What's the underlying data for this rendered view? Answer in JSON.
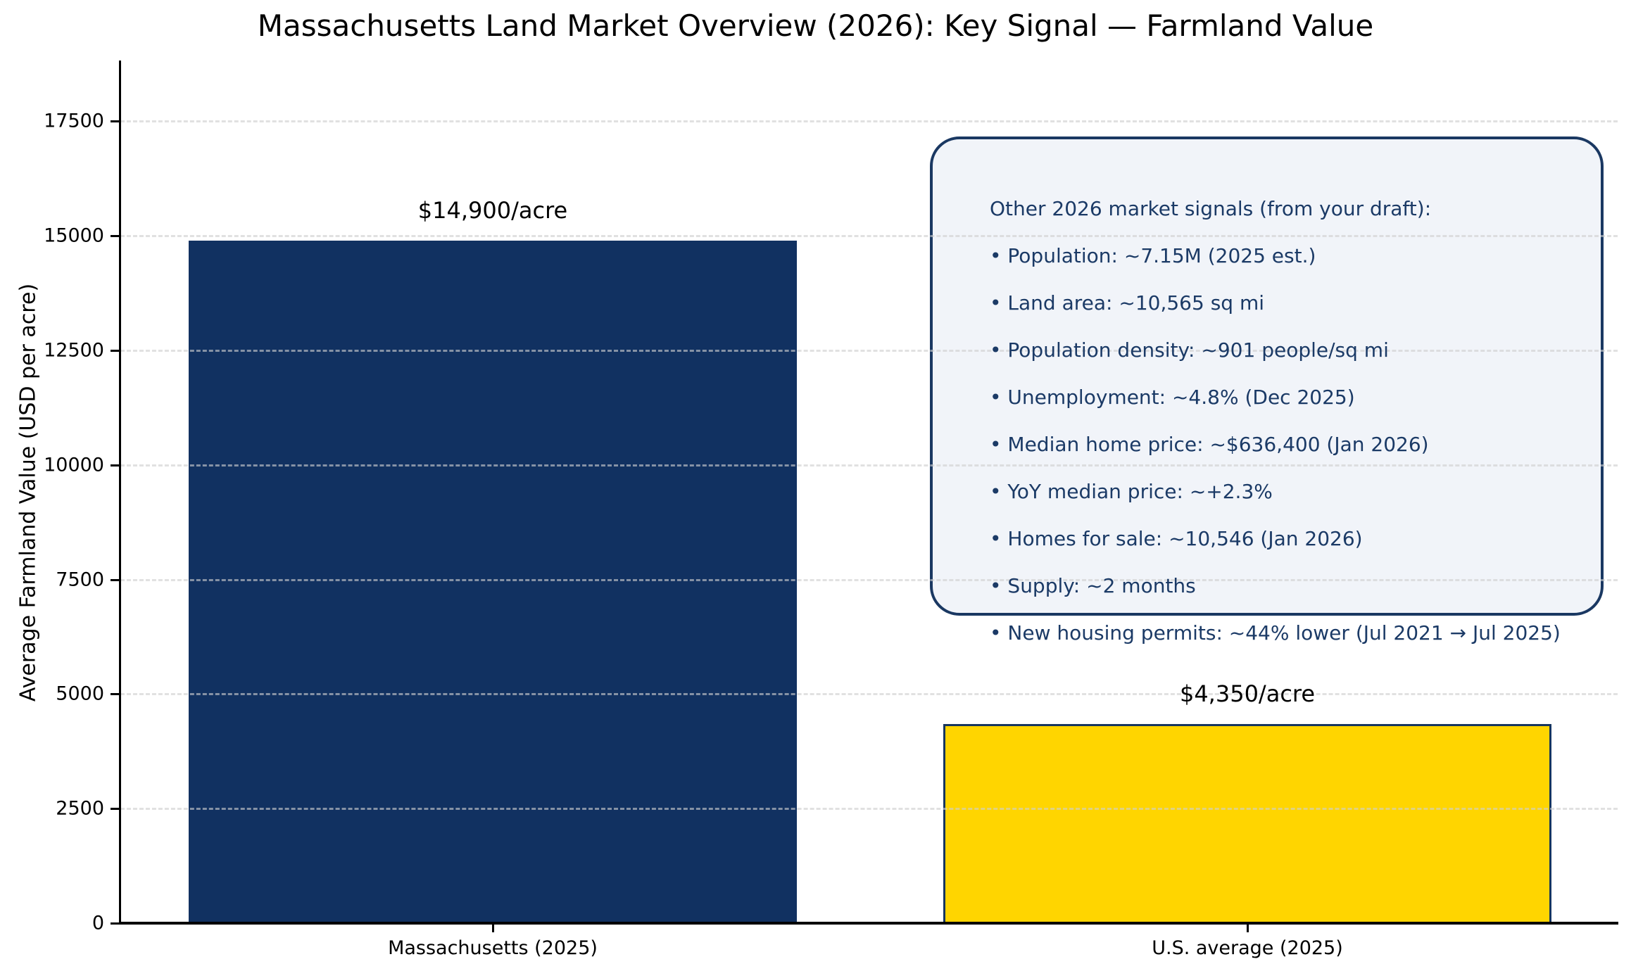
{
  "title": "Massachusetts Land Market Overview (2026): Key Signal — Farmland Value",
  "chart_data": {
    "type": "bar",
    "title": "Massachusetts Land Market Overview (2026): Key Signal — Farmland Value",
    "categories": [
      "Massachusetts (2025)",
      "U.S. average (2025)"
    ],
    "values": [
      14900,
      4350
    ],
    "value_labels": [
      "$14,900/acre",
      "$4,350/acre"
    ],
    "bar_colors": [
      "#113161",
      "#FFD500"
    ],
    "bar_edge_colors": [
      "#113161",
      "#17365F"
    ],
    "xlabel": "",
    "ylabel": "Average Farmland Value (USD per acre)",
    "ylim": [
      0,
      18800
    ],
    "yticks": [
      0,
      2500,
      5000,
      7500,
      10000,
      12500,
      15000,
      17500
    ],
    "grid": "horizontal-dashed",
    "legend": "none",
    "annotation": {
      "title": "Other 2026 market signals (from your draft):",
      "bullet_glyph": "•",
      "bullets": [
        "Population: ~7.15M (2025 est.)",
        "Land area: ~10,565 sq mi",
        "Population density: ~901 people/sq mi",
        "Unemployment: ~4.8% (Dec 2025)",
        "Median home price: ~$636,400 (Jan 2026)",
        "YoY median price: ~+2.3%",
        "Homes for sale: ~10,546 (Jan 2026)",
        "Supply: ~2 months",
        "New housing permits: ~44% lower (Jul 2021 → Jul 2025)"
      ]
    }
  },
  "colors": {
    "navy_bar": "#113161",
    "gold_bar": "#FFD500",
    "gold_bar_edge": "#17365F",
    "annotation_background": "#F1F4F9",
    "annotation_border": "#1A3862",
    "annotation_text": "#1B3A66",
    "axis": "#000000",
    "gridline": "#CECECE",
    "figure_background": "#FFFFFF"
  }
}
